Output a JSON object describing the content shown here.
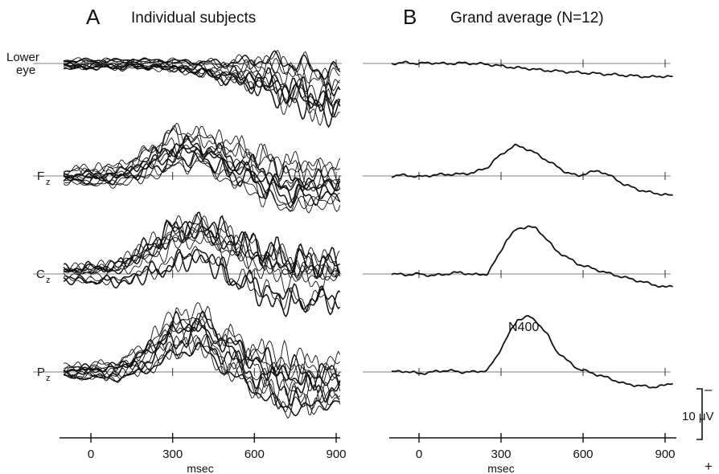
{
  "chart_data": [
    {
      "type": "line",
      "panel_letter": "A",
      "title": "Individual subjects",
      "xlabel": "msec",
      "x_ticks": [
        0,
        300,
        600,
        900
      ],
      "xlim": [
        -100,
        920
      ],
      "grid": false,
      "channels": [
        {
          "label": "Lower",
          "label2": "eye",
          "subscript": "",
          "n_subjects": 12,
          "envelope_x": [
            -100,
            0,
            100,
            200,
            300,
            400,
            500,
            600,
            700,
            800,
            900
          ],
          "envelope_min": [
            -4,
            -4,
            -4,
            -4,
            -5,
            -8,
            -13,
            -18,
            -27,
            -33,
            -37
          ],
          "envelope_max": [
            4,
            4,
            4,
            4,
            4,
            4,
            5,
            9,
            12,
            9,
            6
          ]
        },
        {
          "label": "F",
          "subscript": "z",
          "n_subjects": 12,
          "envelope_x": [
            -100,
            0,
            100,
            200,
            300,
            400,
            500,
            600,
            700,
            800,
            900
          ],
          "envelope_min": [
            -5,
            -7,
            -7,
            -4,
            0,
            4,
            -7,
            -14,
            -24,
            -22,
            -20
          ],
          "envelope_max": [
            5,
            7,
            8,
            18,
            32,
            29,
            25,
            20,
            15,
            12,
            10
          ]
        },
        {
          "label": "C",
          "subscript": "z",
          "n_subjects": 12,
          "envelope_x": [
            -100,
            0,
            100,
            200,
            300,
            400,
            500,
            600,
            700,
            800,
            900
          ],
          "envelope_min": [
            -5,
            -6,
            -7,
            -4,
            0,
            8,
            -7,
            -14,
            -22,
            -22,
            -20
          ],
          "envelope_max": [
            5,
            6,
            8,
            19,
            32,
            34,
            29,
            22,
            16,
            14,
            12
          ]
        },
        {
          "label": "P",
          "subscript": "z",
          "n_subjects": 12,
          "envelope_x": [
            -100,
            0,
            100,
            200,
            300,
            400,
            500,
            600,
            700,
            800,
            900
          ],
          "envelope_min": [
            -5,
            -6,
            -7,
            -4,
            3,
            8,
            -7,
            -18,
            -30,
            -30,
            -24
          ],
          "envelope_max": [
            5,
            6,
            8,
            19,
            38,
            41,
            28,
            20,
            16,
            12,
            10
          ]
        }
      ]
    },
    {
      "type": "line",
      "panel_letter": "B",
      "title": "Grand average (N=12)",
      "xlabel": "msec",
      "x_ticks": [
        0,
        300,
        600,
        900
      ],
      "xlim": [
        -100,
        920
      ],
      "grid": false,
      "channels": [
        {
          "label": "Lower eye",
          "x": [
            -100,
            -50,
            0,
            50,
            100,
            150,
            200,
            250,
            300,
            350,
            400,
            450,
            500,
            550,
            600,
            650,
            700,
            750,
            800,
            850,
            900,
            930
          ],
          "y": [
            0,
            0.5,
            0,
            0.4,
            -0.2,
            0.3,
            0,
            -0.5,
            -1.5,
            -2.5,
            -3,
            -4,
            -4.5,
            -5,
            -5.5,
            -6,
            -6.5,
            -7,
            -7.5,
            -8,
            -7.5,
            -8
          ]
        },
        {
          "label": "Fz",
          "x": [
            -100,
            -50,
            0,
            50,
            100,
            150,
            200,
            250,
            280,
            320,
            350,
            380,
            420,
            460,
            500,
            540,
            580,
            620,
            660,
            700,
            750,
            800,
            850,
            900,
            930
          ],
          "y": [
            0,
            0.5,
            -0.5,
            0.5,
            1,
            1,
            2,
            5,
            10,
            15,
            18,
            17,
            14,
            10,
            6,
            2,
            0,
            2,
            3,
            0,
            -5,
            -8,
            -10,
            -11,
            -12
          ]
        },
        {
          "label": "Cz",
          "x": [
            -100,
            -50,
            0,
            50,
            100,
            150,
            200,
            250,
            280,
            320,
            360,
            400,
            430,
            470,
            500,
            540,
            580,
            620,
            660,
            700,
            750,
            800,
            850,
            900,
            930
          ],
          "y": [
            0,
            -0.5,
            0,
            -1,
            0,
            1,
            -0.5,
            0,
            8,
            20,
            27,
            28,
            27,
            20,
            14,
            10,
            6,
            4,
            2,
            0,
            -2,
            -4,
            -6,
            -8,
            -7
          ]
        },
        {
          "label": "Pz",
          "x": [
            -100,
            -50,
            0,
            50,
            100,
            150,
            200,
            250,
            280,
            320,
            360,
            400,
            430,
            470,
            500,
            540,
            580,
            620,
            660,
            700,
            750,
            800,
            850,
            900,
            930
          ],
          "y": [
            0,
            0.5,
            -1,
            0,
            1,
            0,
            0,
            1,
            8,
            20,
            31,
            33,
            30,
            22,
            13,
            7,
            2,
            0,
            -2,
            -4,
            -7,
            -8,
            -9,
            -8,
            -6
          ]
        }
      ],
      "annotations": [
        {
          "text": "N400",
          "channel": "Pz"
        }
      ]
    }
  ],
  "scale_bar": {
    "value_label": "10 μV",
    "negative_label": "–",
    "positive_label": "+"
  }
}
